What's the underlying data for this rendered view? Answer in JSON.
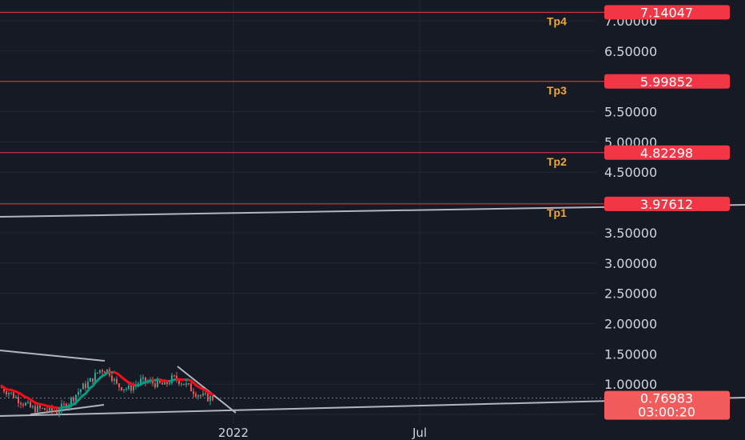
{
  "chart_data": {
    "type": "candlestick",
    "title": "",
    "y_axis": {
      "ylim": [
        0.4,
        7.35
      ],
      "tick_labels": [
        "7.00000",
        "6.50000",
        "6.00000",
        "5.50000",
        "5.00000",
        "4.50000",
        "4.00000",
        "3.50000",
        "3.00000",
        "2.50000",
        "2.00000",
        "1.50000",
        "1.00000",
        "0.50000"
      ],
      "tick_values": [
        7.0,
        6.5,
        6.0,
        5.5,
        5.0,
        4.5,
        4.0,
        3.5,
        3.0,
        2.5,
        2.0,
        1.5,
        1.0,
        0.5
      ]
    },
    "x_axis": {
      "labels": [
        {
          "text": "2022",
          "date": "2022-01-01"
        },
        {
          "text": "Jul",
          "date": "2022-07-01"
        }
      ]
    },
    "targets": [
      {
        "name": "Tp4",
        "value": 7.14047,
        "price_label": "7.14047"
      },
      {
        "name": "Tp3",
        "value": 5.99852,
        "price_label": "5.99852"
      },
      {
        "name": "Tp2",
        "value": 4.82298,
        "price_label": "4.82298"
      },
      {
        "name": "Tp1",
        "value": 3.97612,
        "price_label": "3.97612"
      }
    ],
    "last_price": {
      "value": 0.76983,
      "label": "0.76983",
      "countdown": "03:00:20"
    },
    "colors": {
      "background": "#161a25",
      "up": "#26a69a",
      "down": "#ef5350",
      "target_line": "#f23645",
      "target_text": "#f0a83a",
      "trendline": "#b2b5be",
      "ma_up": "#089981",
      "ma_down": "#f70d1a"
    },
    "grid": true
  }
}
